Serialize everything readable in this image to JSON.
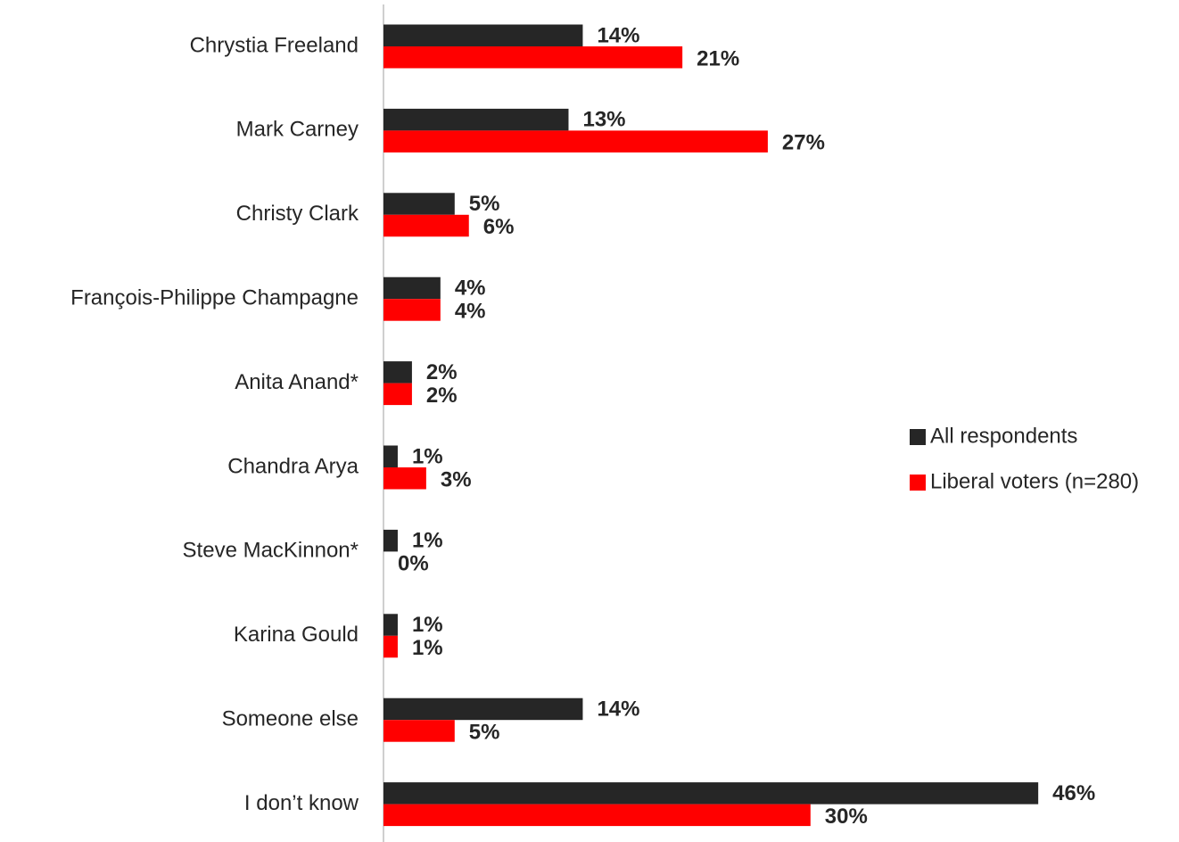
{
  "chart_data": {
    "type": "bar",
    "orientation": "horizontal",
    "categories": [
      "Chrystia Freeland",
      "Mark Carney",
      "Christy Clark",
      "François-Philippe Champagne",
      "Anita Anand*",
      "Chandra Arya",
      "Steve MacKinnon*",
      "Karina Gould",
      "Someone else",
      "I don’t know"
    ],
    "series": [
      {
        "name": "All respondents",
        "color": "#262626",
        "values": [
          14,
          13,
          5,
          4,
          2,
          1,
          1,
          1,
          14,
          46
        ],
        "value_labels": [
          "14%",
          "13%",
          "5%",
          "4%",
          "2%",
          "1%",
          "1%",
          "1%",
          "14%",
          "46%"
        ]
      },
      {
        "name": "Liberal voters (n=280)",
        "color": "#ff0000",
        "values": [
          21,
          27,
          6,
          4,
          2,
          3,
          0,
          1,
          5,
          30
        ],
        "value_labels": [
          "21%",
          "27%",
          "6%",
          "4%",
          "2%",
          "3%",
          "0%",
          "1%",
          "5%",
          "30%"
        ]
      }
    ],
    "legend": "right"
  }
}
